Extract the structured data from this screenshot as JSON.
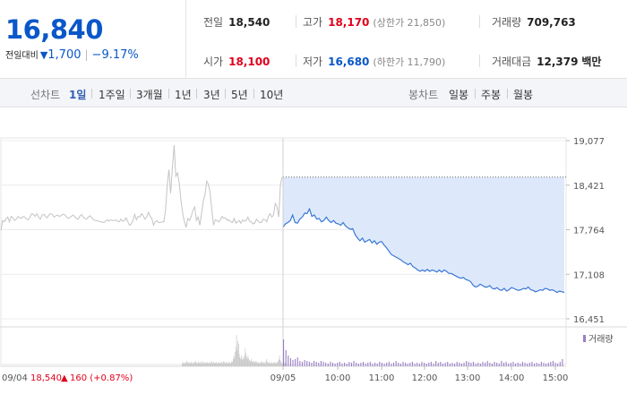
{
  "quote": {
    "price": "16,840",
    "delta_label": "전일대비",
    "delta_symbol": "▼",
    "delta_value": "1,700",
    "delta_pct": "−9.17%",
    "prev_close_label": "전일",
    "prev_close": "18,540",
    "high_label": "고가",
    "high": "18,170",
    "upper_limit_label": "(상한가 21,850)",
    "volume_label": "거래량",
    "volume": "709,763",
    "open_label": "시가",
    "open": "18,100",
    "low_label": "저가",
    "low": "16,680",
    "lower_limit_label": "(하한가 11,790)",
    "turnover_label": "거래대금",
    "turnover": "12,379",
    "turnover_unit": "백만"
  },
  "tabs": {
    "line_label": "선차트",
    "line_ranges": [
      "1일",
      "1주일",
      "3개월",
      "1년",
      "3년",
      "5년",
      "10년"
    ],
    "active_range": "1일",
    "candle_label": "봉차트",
    "candle_ranges": [
      "일봉",
      "주봉",
      "월봉"
    ]
  },
  "colors": {
    "up": "#e1001c",
    "down": "#0a57c9",
    "today_line": "#3a77d6",
    "today_fill": "#dde9fb",
    "prev_line": "#c4c4c4"
  },
  "chart_data": {
    "type": "line",
    "y_ticks": [
      "19,077",
      "18,421",
      "17,764",
      "17,108",
      "16,451"
    ],
    "ylim": [
      16451,
      19077
    ],
    "x_ticks": [
      "09/05",
      "10:00",
      "11:00",
      "12:00",
      "13:00",
      "14:00",
      "15:00"
    ],
    "reference_price": 18540,
    "series": [
      {
        "day": "previous",
        "values": [
          17750,
          17900,
          17880,
          17920,
          17950,
          17880,
          17960,
          17940,
          17900,
          17920,
          17960,
          17940,
          17930,
          17960,
          17950,
          17920,
          17910,
          17950,
          18000,
          17990,
          17960,
          18000,
          17950,
          17920,
          17980,
          17990,
          17960,
          17940,
          17980,
          18000,
          17990,
          17950,
          17970,
          17980,
          17960,
          17970,
          17990,
          17990,
          17960,
          17930,
          17940,
          17960,
          17980,
          17960,
          17930,
          17920,
          17960,
          17990,
          17950,
          17930,
          17920,
          17950,
          17970,
          17940,
          17910,
          17900,
          17900,
          17890,
          17880,
          17880,
          17870,
          17890,
          17910,
          17890,
          17910,
          17900,
          17900,
          17910,
          17890,
          17880,
          17920,
          17890,
          17900,
          17940,
          17880,
          17830,
          17850,
          17900,
          17990,
          17910,
          17960,
          17950,
          18000,
          17970,
          17920,
          17950,
          18020,
          17960,
          17930,
          17830,
          17880,
          17900,
          17870,
          17870,
          17880,
          17880,
          18050,
          18420,
          18650,
          18300,
          18680,
          19010,
          18550,
          18600,
          18450,
          18200,
          18000,
          17880,
          17800,
          17930,
          17900,
          17960,
          18050,
          18100,
          17900,
          17950,
          17830,
          18000,
          18180,
          18280,
          18480,
          18430,
          18310,
          18050,
          17830,
          17910,
          17900,
          17880,
          17910,
          17960,
          17930,
          17940,
          17900,
          17910,
          17880,
          17870,
          17930,
          17860,
          17880,
          17900,
          17860,
          17910,
          17890,
          17900,
          17950,
          17890,
          17880,
          17850,
          17860,
          17920,
          17890,
          17870,
          17870,
          17920,
          17910,
          17880,
          17960,
          18000,
          17950,
          17980,
          18150,
          18100,
          17950,
          18430,
          18540
        ]
      },
      {
        "day": "today",
        "values": [
          17800,
          17850,
          17870,
          17900,
          17980,
          17870,
          17860,
          17920,
          17950,
          18010,
          18000,
          18070,
          17960,
          17980,
          17920,
          17930,
          17880,
          17900,
          17950,
          17900,
          17870,
          17900,
          17860,
          17850,
          17830,
          17870,
          17820,
          17790,
          17770,
          17780,
          17690,
          17640,
          17600,
          17640,
          17580,
          17600,
          17620,
          17570,
          17600,
          17550,
          17580,
          17590,
          17540,
          17500,
          17450,
          17400,
          17380,
          17360,
          17340,
          17320,
          17290,
          17270,
          17250,
          17270,
          17220,
          17200,
          17170,
          17150,
          17170,
          17150,
          17180,
          17150,
          17170,
          17160,
          17140,
          17170,
          17140,
          17170,
          17150,
          17120,
          17120,
          17100,
          17080,
          17060,
          17050,
          17060,
          17030,
          17020,
          17000,
          16950,
          16920,
          16930,
          16960,
          16940,
          16920,
          16920,
          16940,
          16900,
          16890,
          16910,
          16880,
          16870,
          16900,
          16860,
          16880,
          16910,
          16900,
          16880,
          16870,
          16880,
          16900,
          16890,
          16920,
          16880,
          16870,
          16850,
          16860,
          16880,
          16870,
          16900,
          16890,
          16870,
          16880,
          16860,
          16840,
          16860,
          16850,
          16840
        ]
      }
    ],
    "volume": {
      "legend": "거래량",
      "date_label": "09/04",
      "prev_close_label": "18,540",
      "prev_change_symbol": "▲",
      "prev_change": "160 (+0.87%)"
    }
  }
}
